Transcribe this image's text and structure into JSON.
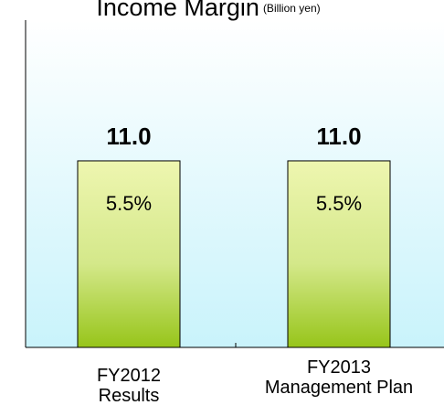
{
  "chart_data": {
    "type": "bar",
    "title": "Income Margin",
    "subtitle": "(Billion yen)",
    "categories": [
      [
        "FY2012",
        "Results"
      ],
      [
        "FY2013",
        "Management Plan"
      ]
    ],
    "values": [
      11.0,
      11.0
    ],
    "value_labels": [
      "11.0",
      "11.0"
    ],
    "margins": [
      5.5,
      5.5
    ],
    "margin_labels": [
      "5.5%",
      "5.5%"
    ],
    "ylim": [
      0,
      19.3
    ],
    "color": "#b5d334"
  }
}
